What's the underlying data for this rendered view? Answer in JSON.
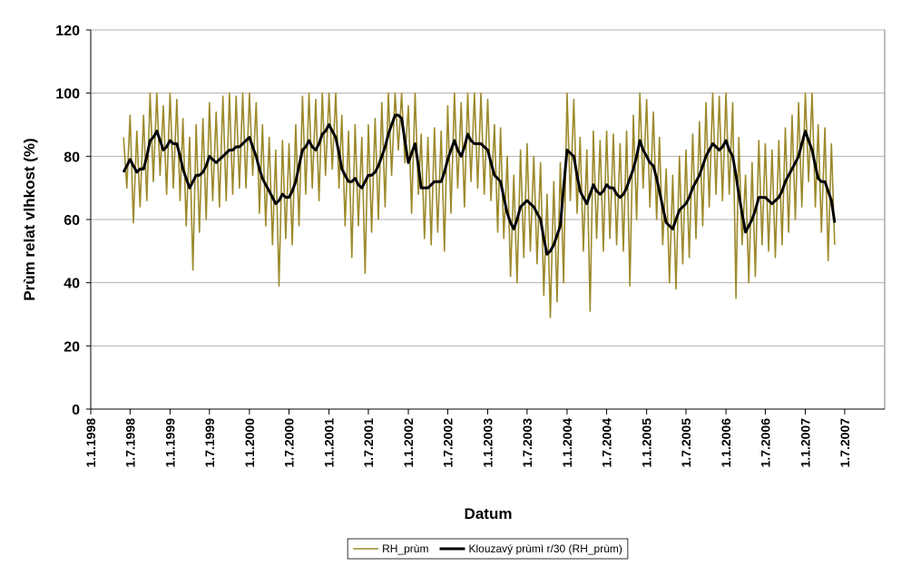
{
  "chart_data": {
    "type": "line",
    "y_label": "Prùm relat vlhkost (%)",
    "x_label": "Datum",
    "ylim": [
      0,
      120
    ],
    "yticks": [
      0,
      20,
      40,
      60,
      80,
      100,
      120
    ],
    "grid": true,
    "xlim": [
      "1.1.1998",
      "1.1.2008"
    ],
    "xticks": [
      "1.1.1998",
      "1.7.1998",
      "1.1.1999",
      "1.7.1999",
      "1.1.2000",
      "1.7.2000",
      "1.1.2001",
      "1.7.2001",
      "1.1.2002",
      "1.7.2002",
      "1.1.2003",
      "1.7.2003",
      "1.1.2004",
      "1.7.2004",
      "1.1.2005",
      "1.7.2005",
      "1.1.2006",
      "1.7.2006",
      "1.1.2007",
      "1.7.2007"
    ],
    "legend": "bottom",
    "x": [
      "1.6.1998",
      "16.6.1998",
      "1.7.1998",
      "16.7.1998",
      "1.8.1998",
      "16.8.1998",
      "1.9.1998",
      "16.9.1998",
      "1.10.1998",
      "16.10.1998",
      "1.11.1998",
      "16.11.1998",
      "1.12.1998",
      "16.12.1998",
      "1.1.1999",
      "16.1.1999",
      "1.2.1999",
      "16.2.1999",
      "1.3.1999",
      "16.3.1999",
      "1.4.1999",
      "16.4.1999",
      "1.5.1999",
      "16.5.1999",
      "1.6.1999",
      "16.6.1999",
      "1.7.1999",
      "16.7.1999",
      "1.8.1999",
      "16.8.1999",
      "1.9.1999",
      "16.9.1999",
      "1.10.1999",
      "16.10.1999",
      "1.11.1999",
      "16.11.1999",
      "1.12.1999",
      "16.12.1999",
      "1.1.2000",
      "16.1.2000",
      "1.2.2000",
      "16.2.2000",
      "1.3.2000",
      "16.3.2000",
      "1.4.2000",
      "16.4.2000",
      "1.5.2000",
      "16.5.2000",
      "1.6.2000",
      "16.6.2000",
      "1.7.2000",
      "16.7.2000",
      "1.8.2000",
      "16.8.2000",
      "1.9.2000",
      "16.9.2000",
      "1.10.2000",
      "16.10.2000",
      "1.11.2000",
      "16.11.2000",
      "1.12.2000",
      "16.12.2000",
      "1.1.2001",
      "16.1.2001",
      "1.2.2001",
      "16.2.2001",
      "1.3.2001",
      "16.3.2001",
      "1.4.2001",
      "16.4.2001",
      "1.5.2001",
      "16.5.2001",
      "1.6.2001",
      "16.6.2001",
      "1.7.2001",
      "16.7.2001",
      "1.8.2001",
      "16.8.2001",
      "1.9.2001",
      "16.9.2001",
      "1.10.2001",
      "16.10.2001",
      "1.11.2001",
      "16.11.2001",
      "1.12.2001",
      "16.12.2001",
      "1.1.2002",
      "16.1.2002",
      "1.2.2002",
      "16.2.2002",
      "1.3.2002",
      "16.3.2002",
      "1.4.2002",
      "16.4.2002",
      "1.5.2002",
      "16.5.2002",
      "1.6.2002",
      "16.6.2002",
      "1.7.2002",
      "16.7.2002",
      "1.8.2002",
      "16.8.2002",
      "1.9.2002",
      "16.9.2002",
      "1.10.2002",
      "16.10.2002",
      "1.11.2002",
      "16.11.2002",
      "1.12.2002",
      "16.12.2002",
      "1.1.2003",
      "16.1.2003",
      "1.2.2003",
      "16.2.2003",
      "1.3.2003",
      "16.3.2003",
      "1.4.2003",
      "16.4.2003",
      "1.5.2003",
      "16.5.2003",
      "1.6.2003",
      "16.6.2003",
      "1.7.2003",
      "16.7.2003",
      "1.8.2003",
      "16.8.2003",
      "1.9.2003",
      "16.9.2003",
      "1.10.2003",
      "16.10.2003",
      "1.11.2003",
      "16.11.2003",
      "1.12.2003",
      "16.12.2003",
      "1.1.2004",
      "16.1.2004",
      "1.2.2004",
      "16.2.2004",
      "1.3.2004",
      "16.3.2004",
      "1.4.2004",
      "16.4.2004",
      "1.5.2004",
      "16.5.2004",
      "1.6.2004",
      "16.6.2004",
      "1.7.2004",
      "16.7.2004",
      "1.8.2004",
      "16.8.2004",
      "1.9.2004",
      "16.9.2004",
      "1.10.2004",
      "16.10.2004",
      "1.11.2004",
      "16.11.2004",
      "1.12.2004",
      "16.12.2004",
      "1.1.2005",
      "16.1.2005",
      "1.2.2005",
      "16.2.2005",
      "1.3.2005",
      "16.3.2005",
      "1.4.2005",
      "16.4.2005",
      "1.5.2005",
      "16.5.2005",
      "1.6.2005",
      "16.6.2005",
      "1.7.2005",
      "16.7.2005",
      "1.8.2005",
      "16.8.2005",
      "1.9.2005",
      "16.9.2005",
      "1.10.2005",
      "16.10.2005",
      "1.11.2005",
      "16.11.2005",
      "1.12.2005",
      "16.12.2005",
      "1.1.2006",
      "16.1.2006",
      "1.2.2006",
      "16.2.2006",
      "1.3.2006",
      "16.3.2006",
      "1.4.2006",
      "16.4.2006",
      "1.5.2006",
      "16.5.2006",
      "1.6.2006",
      "16.6.2006",
      "1.7.2006",
      "16.7.2006",
      "1.8.2006",
      "16.8.2006",
      "1.9.2006",
      "16.9.2006",
      "1.10.2006",
      "16.10.2006",
      "1.11.2006",
      "16.11.2006",
      "1.12.2006",
      "16.12.2006",
      "1.1.2007",
      "16.1.2007",
      "1.2.2007",
      "16.2.2007",
      "1.3.2007",
      "16.3.2007",
      "1.4.2007",
      "16.4.2007",
      "1.5.2007",
      "16.5.2007"
    ],
    "series": [
      {
        "name": "RH_prùm",
        "color": "#9c8a2c",
        "width": 1.6,
        "values": [
          86,
          70,
          93,
          59,
          88,
          64,
          93,
          66,
          100,
          72,
          100,
          74,
          96,
          68,
          100,
          70,
          98,
          66,
          92,
          58,
          86,
          44,
          90,
          56,
          92,
          60,
          97,
          66,
          94,
          64,
          99,
          66,
          100,
          68,
          99,
          70,
          100,
          70,
          100,
          74,
          97,
          62,
          90,
          58,
          86,
          52,
          82,
          39,
          85,
          54,
          84,
          52,
          90,
          58,
          99,
          68,
          100,
          70,
          98,
          66,
          100,
          74,
          100,
          76,
          100,
          70,
          93,
          58,
          88,
          48,
          90,
          58,
          86,
          43,
          90,
          56,
          92,
          60,
          97,
          64,
          100,
          74,
          100,
          82,
          100,
          78,
          96,
          62,
          100,
          68,
          87,
          54,
          86,
          52,
          89,
          56,
          88,
          50,
          96,
          62,
          100,
          70,
          97,
          64,
          100,
          72,
          100,
          70,
          100,
          68,
          98,
          66,
          90,
          56,
          89,
          54,
          80,
          42,
          74,
          40,
          82,
          48,
          84,
          50,
          80,
          46,
          78,
          36,
          68,
          29,
          72,
          34,
          78,
          40,
          100,
          66,
          98,
          62,
          86,
          50,
          82,
          31,
          88,
          54,
          85,
          50,
          88,
          54,
          87,
          52,
          84,
          50,
          88,
          39,
          93,
          60,
          100,
          70,
          98,
          64,
          94,
          60,
          86,
          52,
          76,
          40,
          74,
          38,
          80,
          46,
          82,
          48,
          87,
          54,
          91,
          58,
          97,
          64,
          100,
          68,
          99,
          66,
          100,
          68,
          97,
          35,
          86,
          52,
          74,
          40,
          78,
          42,
          85,
          52,
          84,
          50,
          82,
          48,
          85,
          52,
          89,
          56,
          93,
          60,
          97,
          64,
          100,
          72,
          100,
          64,
          90,
          56,
          89,
          47,
          84,
          52
        ]
      },
      {
        "name": "Klouzavý prùmì r/30 (RH_prùm)",
        "color": "#000000",
        "width": 3,
        "values": [
          75,
          77,
          79,
          77,
          75,
          76,
          76,
          80,
          85,
          86,
          88,
          85,
          82,
          83,
          85,
          84,
          84,
          80,
          76,
          73,
          70,
          72,
          74,
          74,
          75,
          77,
          80,
          79,
          78,
          79,
          80,
          81,
          82,
          82,
          83,
          83,
          84,
          85,
          86,
          83,
          80,
          76,
          73,
          71,
          69,
          67,
          65,
          66,
          68,
          67,
          67,
          69,
          72,
          77,
          82,
          83,
          85,
          83,
          82,
          84,
          87,
          88,
          90,
          88,
          86,
          81,
          76,
          74,
          72,
          72,
          73,
          71,
          70,
          72,
          74,
          74,
          75,
          77,
          80,
          83,
          87,
          90,
          93,
          93,
          92,
          85,
          78,
          81,
          84,
          77,
          70,
          70,
          70,
          71,
          72,
          72,
          72,
          75,
          79,
          82,
          85,
          82,
          80,
          83,
          87,
          85,
          84,
          84,
          84,
          83,
          82,
          78,
          74,
          73,
          72,
          67,
          62,
          59,
          57,
          60,
          64,
          65,
          66,
          65,
          64,
          62,
          60,
          54,
          49,
          50,
          52,
          55,
          58,
          70,
          82,
          81,
          80,
          74,
          69,
          67,
          65,
          68,
          71,
          69,
          68,
          69,
          71,
          70,
          70,
          68,
          67,
          68,
          70,
          73,
          76,
          80,
          85,
          82,
          80,
          78,
          77,
          73,
          69,
          64,
          59,
          58,
          57,
          60,
          63,
          64,
          65,
          67,
          70,
          72,
          74,
          77,
          80,
          82,
          84,
          83,
          82,
          83,
          85,
          82,
          80,
          74,
          68,
          62,
          56,
          58,
          60,
          63,
          67,
          67,
          67,
          66,
          65,
          66,
          67,
          69,
          72,
          74,
          76,
          78,
          80,
          84,
          88,
          85,
          82,
          77,
          73,
          72,
          72,
          69,
          66,
          59
        ]
      }
    ]
  }
}
